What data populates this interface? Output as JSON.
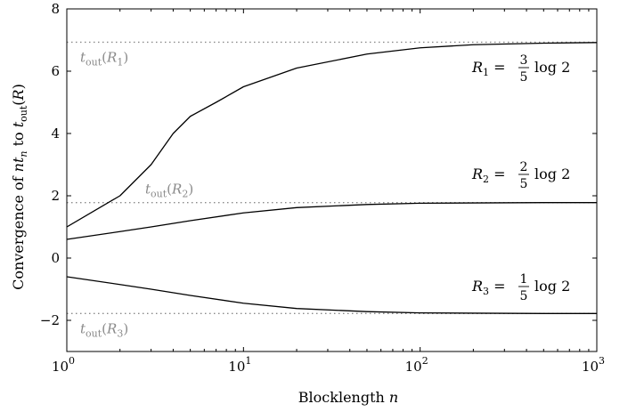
{
  "chart_data": {
    "type": "line",
    "xscale": "log",
    "xlim": [
      1,
      1000
    ],
    "ylim": [
      -3,
      8
    ],
    "xlabel": {
      "text": "Blocklength ",
      "var": "n"
    },
    "ylabel": {
      "prefix": "Convergence of ",
      "var1": "nt",
      "sub1": "n",
      "mid": " to ",
      "var2": "t",
      "sub2": "out",
      "arg": "R"
    },
    "x_ticks": [
      {
        "value": 1,
        "base": "10",
        "exp": "0"
      },
      {
        "value": 10,
        "base": "10",
        "exp": "1"
      },
      {
        "value": 100,
        "base": "10",
        "exp": "2"
      },
      {
        "value": 1000,
        "base": "10",
        "exp": "3"
      }
    ],
    "y_ticks": [
      {
        "value": -2,
        "label": "−2"
      },
      {
        "value": 0,
        "label": "0"
      },
      {
        "value": 2,
        "label": "2"
      },
      {
        "value": 4,
        "label": "4"
      },
      {
        "value": 6,
        "label": "6"
      },
      {
        "value": 8,
        "label": "8"
      }
    ],
    "grid": false,
    "reference_lines": [
      {
        "y": 6.93,
        "label": {
          "t": "t",
          "sub": "out",
          "R": "R",
          "idx": "1"
        },
        "label_pos": "below-left"
      },
      {
        "y": 1.78,
        "label": {
          "t": "t",
          "sub": "out",
          "R": "R",
          "idx": "2"
        },
        "label_pos": "above-mid"
      },
      {
        "y": -1.78,
        "label": {
          "t": "t",
          "sub": "out",
          "R": "R",
          "idx": "3"
        },
        "label_pos": "below-left"
      }
    ],
    "series": [
      {
        "label": {
          "R": "R",
          "idx": "1",
          "eq": "=",
          "num": "3",
          "den": "5",
          "tail": "log 2"
        },
        "x": [
          1,
          2,
          3,
          4,
          5,
          7,
          10,
          20,
          50,
          100,
          200,
          500,
          1000
        ],
        "y": [
          1.0,
          2.0,
          3.0,
          4.0,
          4.55,
          5.0,
          5.5,
          6.1,
          6.55,
          6.75,
          6.85,
          6.9,
          6.92
        ]
      },
      {
        "label": {
          "R": "R",
          "idx": "2",
          "eq": "=",
          "num": "2",
          "den": "5",
          "tail": "log 2"
        },
        "x": [
          1,
          2,
          3,
          5,
          10,
          20,
          50,
          100,
          200,
          500,
          1000
        ],
        "y": [
          0.6,
          0.85,
          1.0,
          1.2,
          1.45,
          1.62,
          1.72,
          1.76,
          1.77,
          1.78,
          1.78
        ]
      },
      {
        "label": {
          "R": "R",
          "idx": "3",
          "eq": "=",
          "num": "1",
          "den": "5",
          "tail": "log 2"
        },
        "x": [
          1,
          2,
          3,
          5,
          10,
          20,
          50,
          100,
          200,
          500,
          1000
        ],
        "y": [
          -0.6,
          -0.85,
          -1.0,
          -1.2,
          -1.45,
          -1.62,
          -1.72,
          -1.76,
          -1.77,
          -1.78,
          -1.78
        ]
      }
    ]
  }
}
